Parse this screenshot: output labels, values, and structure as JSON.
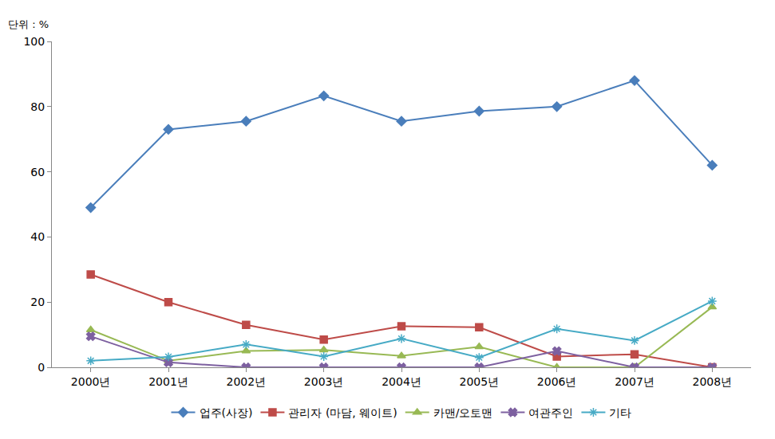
{
  "chart_data": {
    "type": "line",
    "y_label": "단위 : %",
    "categories": [
      "2000년",
      "2001년",
      "2002년",
      "2003년",
      "2004년",
      "2005년",
      "2006년",
      "2007년",
      "2008년"
    ],
    "series": [
      {
        "name": "업주(사장)",
        "color": "#4a7ebb",
        "marker": "diamond",
        "values": [
          49,
          73,
          75.5,
          83.3,
          75.5,
          78.6,
          80,
          88,
          62
        ]
      },
      {
        "name": "관리자 (마담, 웨이트)",
        "color": "#be4b48",
        "marker": "square",
        "values": [
          28.5,
          20,
          13,
          8.5,
          12.6,
          12.3,
          3.3,
          4,
          0
        ]
      },
      {
        "name": "카맨/오토맨",
        "color": "#98b954",
        "marker": "triangle-up",
        "values": [
          11.5,
          2,
          5,
          5.3,
          3.5,
          6.3,
          0,
          0,
          18.5
        ]
      },
      {
        "name": "여관주인",
        "color": "#7d60a0",
        "marker": "x",
        "values": [
          9.5,
          1.5,
          0,
          0,
          0,
          0,
          5,
          0,
          0
        ]
      },
      {
        "name": "기타",
        "color": "#46aac5",
        "marker": "asterisk-open",
        "values": [
          2,
          3.2,
          7,
          3.3,
          8.8,
          3,
          11.8,
          8.2,
          20.3
        ]
      }
    ],
    "ylim": [
      0,
      100
    ],
    "yticks": [
      0,
      20,
      40,
      60,
      80,
      100
    ],
    "grid": false,
    "legend": "bottom"
  }
}
